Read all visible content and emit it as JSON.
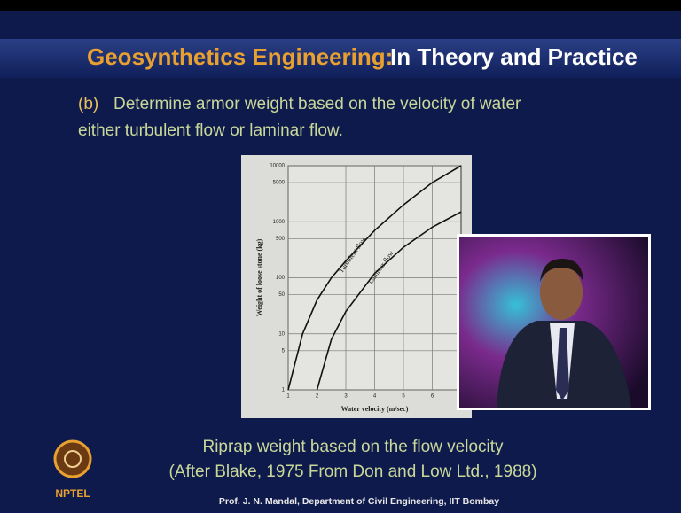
{
  "header": {
    "title_main": "Geosynthetics Engineering:",
    "title_rest": "In Theory and Practice"
  },
  "body": {
    "point_label": "(b)",
    "point_text": "Determine armor weight based on the velocity of water",
    "point_text_2": "either turbulent flow or laminar flow."
  },
  "chart_data": {
    "type": "line",
    "x_label": "Water velocity (m/sec)",
    "y_label": "Weight of loose stone (kg)",
    "log_y": true,
    "grid": true,
    "x": [
      1,
      1.5,
      2,
      2.5,
      3,
      4,
      5,
      6,
      7
    ],
    "xlim": [
      1,
      7
    ],
    "xticks": [
      1,
      2,
      3,
      4,
      5,
      6
    ],
    "ylim": [
      1,
      10000
    ],
    "yticks": [
      1,
      5,
      10,
      50,
      100,
      500,
      1000,
      5000,
      10000
    ],
    "series": [
      {
        "name": "Turbulent flow",
        "color": "#111111",
        "values": [
          1,
          10,
          40,
          100,
          200,
          700,
          2000,
          5000,
          10000
        ]
      },
      {
        "name": "Laminar flow",
        "color": "#111111",
        "values": [
          null,
          null,
          1,
          8,
          25,
          120,
          350,
          800,
          1500
        ]
      }
    ]
  },
  "caption": {
    "line_1": "Riprap weight based on the flow velocity",
    "line_2": "(After Blake, 1975 From Don and Low Ltd., 1988)"
  },
  "footer": {
    "logo": "NPTEL",
    "credit": "Prof. J. N. Mandal, Department of Civil Engineering, IIT Bombay"
  }
}
